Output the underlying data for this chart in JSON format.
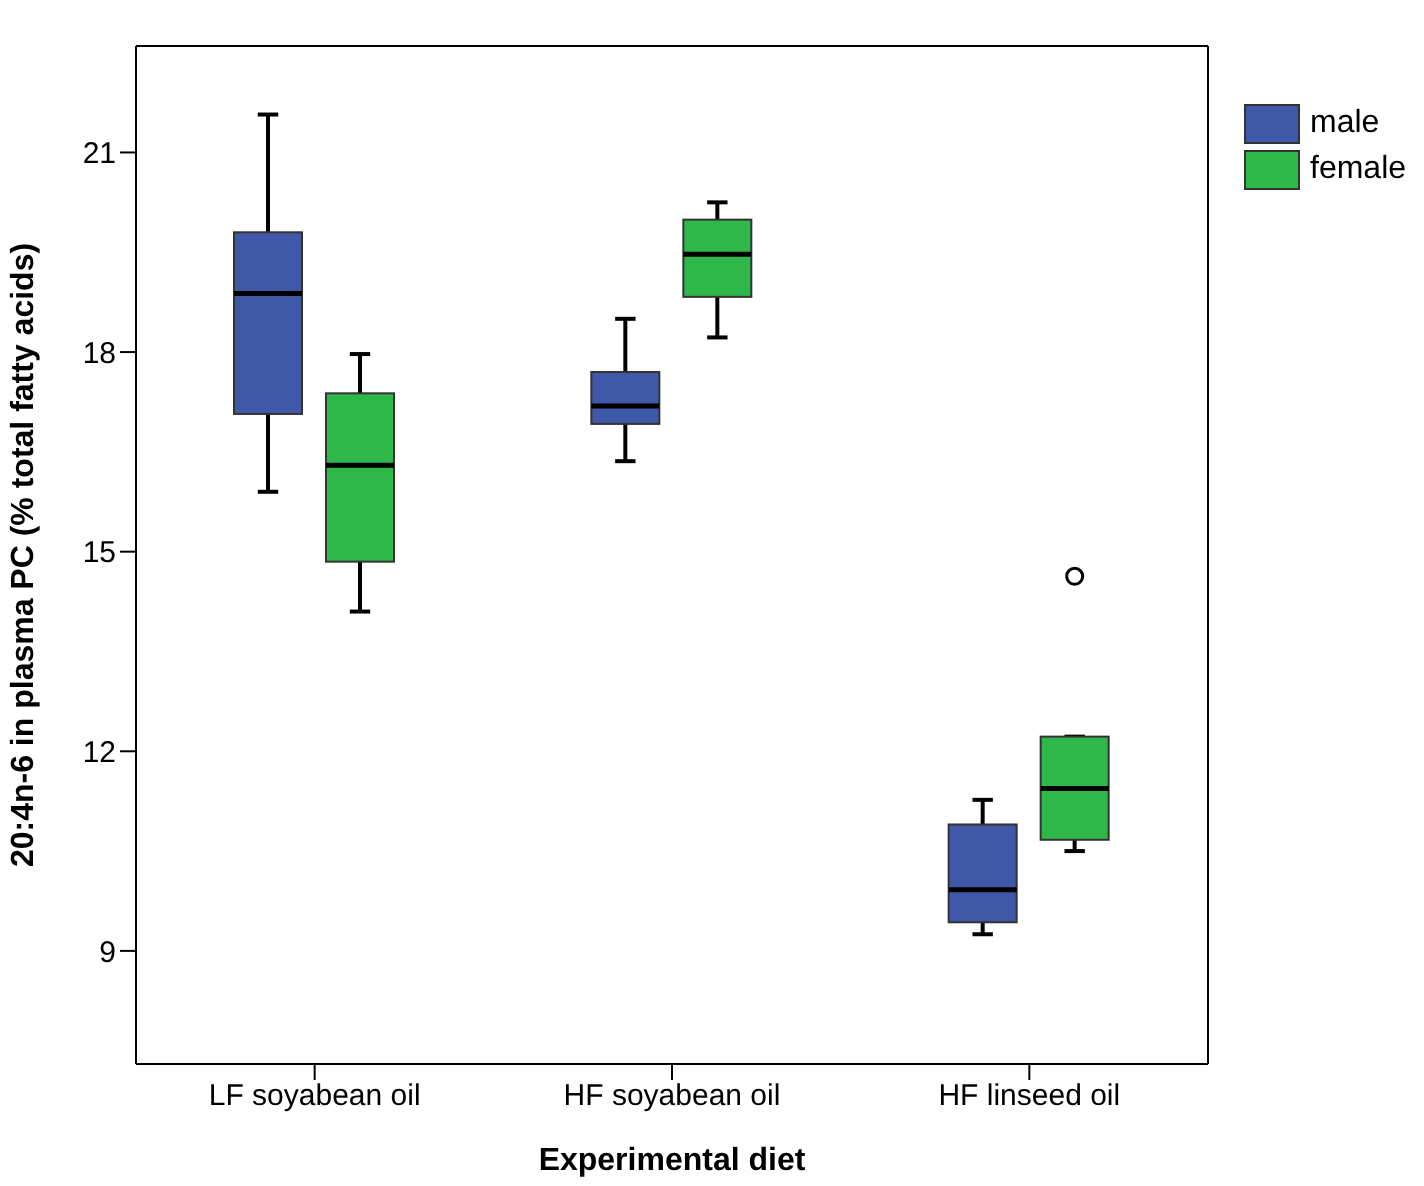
{
  "chart_data": {
    "type": "box",
    "xlabel": "Experimental diet",
    "ylabel": "20:4n-6 in plasma PC (% total fatty acids)",
    "categories": [
      "LF soyabean oil",
      "HF soyabean oil",
      "HF linseed oil"
    ],
    "ylim": [
      7.3,
      22.6
    ],
    "yticks": [
      9,
      12,
      15,
      18,
      21
    ],
    "legend": "top right",
    "grid": false,
    "series": [
      {
        "name": "male",
        "color": "#3f58a8",
        "boxes": [
          {
            "low": 15.9,
            "q1": 17.07,
            "median": 18.88,
            "q3": 19.8,
            "high": 21.57
          },
          {
            "low": 16.36,
            "q1": 16.92,
            "median": 17.19,
            "q3": 17.7,
            "high": 18.5
          },
          {
            "low": 9.25,
            "q1": 9.43,
            "median": 9.92,
            "q3": 10.9,
            "high": 11.27
          }
        ]
      },
      {
        "name": "female",
        "color": "#2fb84a",
        "boxes": [
          {
            "low": 14.1,
            "q1": 14.85,
            "median": 16.3,
            "q3": 17.38,
            "high": 17.97
          },
          {
            "low": 18.22,
            "q1": 18.83,
            "median": 19.47,
            "q3": 19.99,
            "high": 20.25
          },
          {
            "low": 10.5,
            "q1": 10.67,
            "median": 11.44,
            "q3": 12.22,
            "high": 12.22,
            "outliers": [
              14.63
            ]
          }
        ]
      }
    ]
  }
}
